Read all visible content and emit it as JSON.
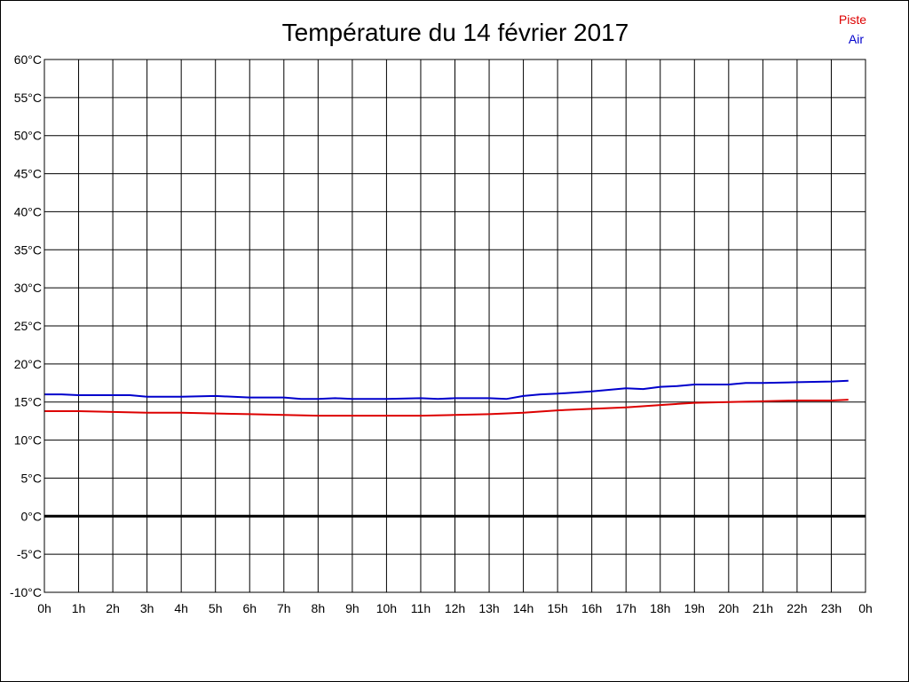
{
  "chart_data": {
    "type": "line",
    "title": "Température du 14 février 2017",
    "x_tick_labels": [
      "0h",
      "1h",
      "2h",
      "3h",
      "4h",
      "5h",
      "6h",
      "7h",
      "8h",
      "9h",
      "10h",
      "11h",
      "12h",
      "13h",
      "14h",
      "15h",
      "16h",
      "17h",
      "18h",
      "19h",
      "20h",
      "21h",
      "22h",
      "23h",
      "0h"
    ],
    "y_tick_labels": [
      "60°C",
      "55°C",
      "50°C",
      "45°C",
      "40°C",
      "35°C",
      "30°C",
      "25°C",
      "20°C",
      "15°C",
      "10°C",
      "5°C",
      "0°C",
      "-5°C",
      "-10°C"
    ],
    "xlim": [
      0,
      24
    ],
    "ylim": [
      -10,
      60
    ],
    "y_step": 5,
    "grid": true,
    "zero_line": true,
    "legend_position": "top-right",
    "series": [
      {
        "name": "Piste",
        "color": "#dd0000",
        "x": [
          0,
          1,
          2,
          3,
          4,
          5,
          6,
          7,
          8,
          9,
          10,
          11,
          12,
          13,
          14,
          15,
          16,
          17,
          18,
          19,
          20,
          21,
          22,
          23,
          23.5
        ],
        "y": [
          13.8,
          13.8,
          13.7,
          13.6,
          13.6,
          13.5,
          13.4,
          13.3,
          13.2,
          13.2,
          13.2,
          13.2,
          13.3,
          13.4,
          13.6,
          13.9,
          14.1,
          14.3,
          14.6,
          14.9,
          15.0,
          15.1,
          15.2,
          15.2,
          15.3
        ]
      },
      {
        "name": "Air",
        "color": "#0000cc",
        "x": [
          0,
          0.5,
          1,
          2,
          2.5,
          3,
          4,
          5,
          6,
          7,
          7.5,
          8,
          8.5,
          9,
          10,
          11,
          11.5,
          12,
          12.5,
          13,
          13.5,
          14,
          14.5,
          15,
          16,
          16.5,
          17,
          17.5,
          18,
          18.5,
          19,
          20,
          20.5,
          21,
          22,
          23,
          23.5
        ],
        "y": [
          16.0,
          16.0,
          15.9,
          15.9,
          15.9,
          15.7,
          15.7,
          15.8,
          15.6,
          15.6,
          15.4,
          15.4,
          15.5,
          15.4,
          15.4,
          15.5,
          15.4,
          15.5,
          15.5,
          15.5,
          15.4,
          15.8,
          16.0,
          16.1,
          16.4,
          16.6,
          16.8,
          16.7,
          17.0,
          17.1,
          17.3,
          17.3,
          17.5,
          17.5,
          17.6,
          17.7,
          17.8
        ]
      }
    ]
  }
}
